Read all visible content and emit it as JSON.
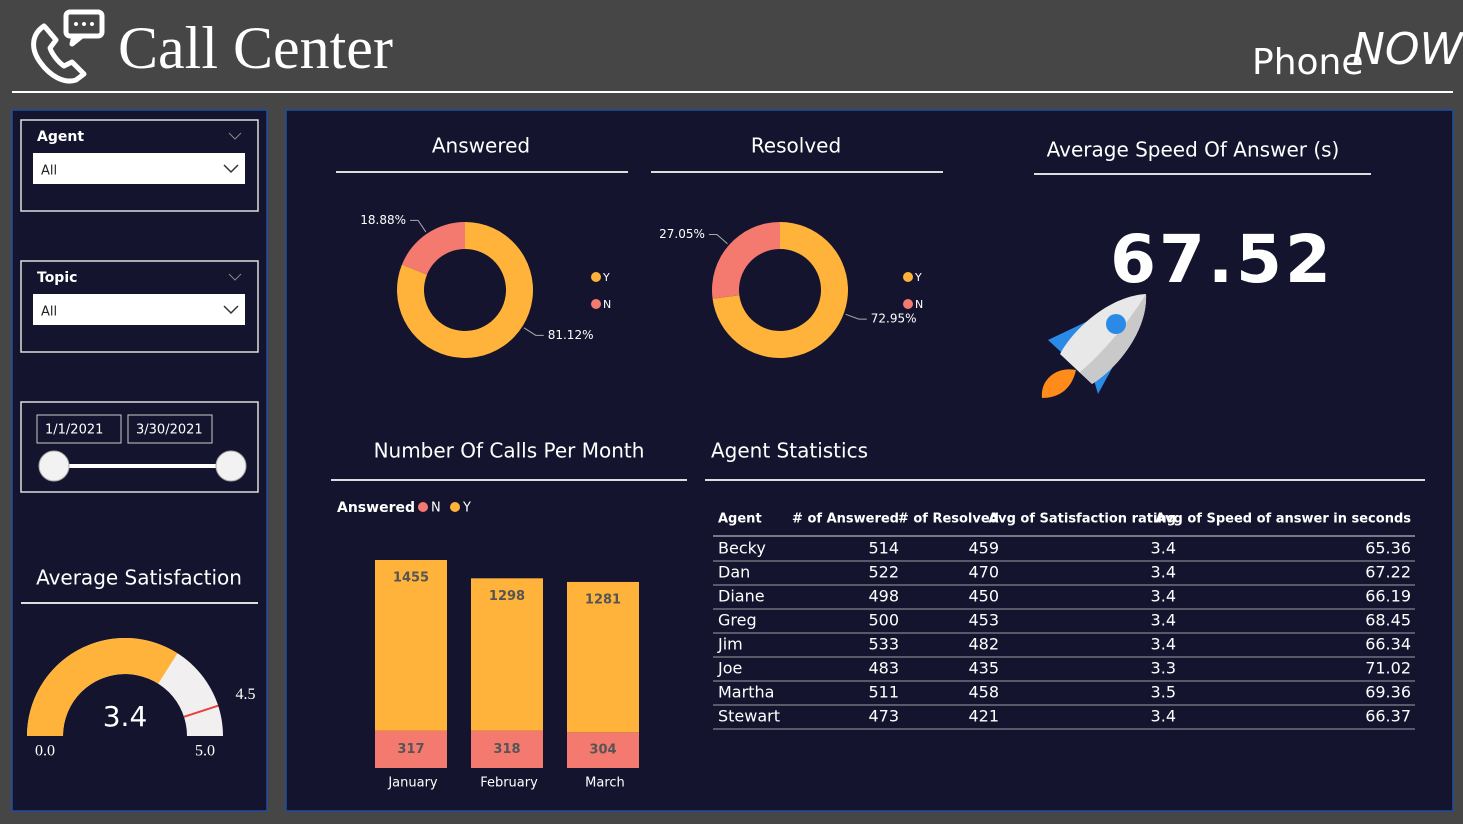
{
  "header": {
    "title": "Call Center",
    "brand": "Phone",
    "brand_accent": "NOW"
  },
  "filters": {
    "agent": {
      "label": "Agent",
      "value": "All"
    },
    "topic": {
      "label": "Topic",
      "value": "All"
    },
    "date": {
      "start": "1/1/2021",
      "end": "3/30/2021"
    }
  },
  "chart_data": [
    {
      "type": "donut",
      "title": "Answered",
      "categories": [
        "Y",
        "N"
      ],
      "values": [
        81.12,
        18.88
      ],
      "value_labels": [
        "81.12%",
        "18.88%"
      ],
      "colors": [
        "#ffb33a",
        "#f47a6f"
      ]
    },
    {
      "type": "donut",
      "title": "Resolved",
      "categories": [
        "Y",
        "N"
      ],
      "values": [
        72.95,
        27.05
      ],
      "value_labels": [
        "72.95%",
        "27.05%"
      ],
      "colors": [
        "#ffb33a",
        "#f47a6f"
      ]
    },
    {
      "type": "kpi",
      "title": "Average Speed Of Answer (s)",
      "value": 67.52
    },
    {
      "type": "gauge",
      "title": "Average Satisfaction",
      "value": 3.4,
      "target": 4.5,
      "ylim": [
        0,
        5
      ],
      "yticks": [
        {
          "value": 0,
          "label": "0.0"
        },
        {
          "value": 5,
          "label": "5.0"
        }
      ],
      "color": "#ffb33a",
      "track_color": "#f1efef",
      "target_color": "#e8423a"
    },
    {
      "type": "stacked_bar",
      "title": "Number Of Calls Per Month",
      "legend_title": "Answered",
      "categories": [
        "January",
        "February",
        "March"
      ],
      "series": [
        {
          "name": "N",
          "color": "#f47a6f",
          "values": [
            317,
            318,
            304
          ]
        },
        {
          "name": "Y",
          "color": "#ffb33a",
          "values": [
            1455,
            1298,
            1281
          ]
        }
      ]
    }
  ],
  "table": {
    "title": "Agent Statistics",
    "columns": [
      "Agent",
      "# of Answered",
      "# of Resolved",
      "Avg of Satisfaction rating",
      "Avg of Speed of answer in seconds"
    ],
    "rows": [
      [
        "Becky",
        514,
        459,
        3.4,
        65.36
      ],
      [
        "Dan",
        522,
        470,
        3.4,
        67.22
      ],
      [
        "Diane",
        498,
        450,
        3.4,
        66.19
      ],
      [
        "Greg",
        500,
        453,
        3.4,
        68.45
      ],
      [
        "Jim",
        533,
        482,
        3.4,
        66.34
      ],
      [
        "Joe",
        483,
        435,
        3.3,
        71.02
      ],
      [
        "Martha",
        511,
        458,
        3.5,
        69.36
      ],
      [
        "Stewart",
        473,
        421,
        3.4,
        66.37
      ]
    ]
  }
}
